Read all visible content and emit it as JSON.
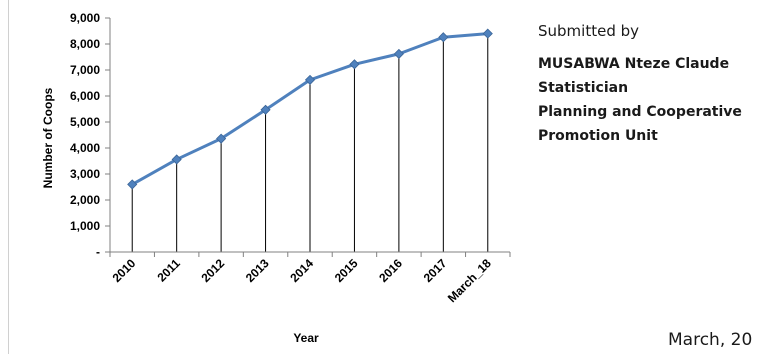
{
  "chart_data": {
    "type": "line",
    "categories": [
      "2010",
      "2011",
      "2012",
      "2013",
      "2014",
      "2015",
      "2016",
      "2017",
      "March_18"
    ],
    "values": [
      2600,
      3560,
      4360,
      5470,
      6620,
      7220,
      7620,
      8260,
      8400
    ],
    "xlabel": "Year",
    "ylabel": "Number of Coops",
    "ylim": [
      0,
      9000
    ],
    "yticks": [
      "-",
      "1,000",
      "2,000",
      "3,000",
      "4,000",
      "5,000",
      "6,000",
      "7,000",
      "8,000",
      "9,000"
    ],
    "drop_lines": true,
    "grid": false,
    "legend": "none",
    "colors": {
      "line": "#4f81bd",
      "marker": "#4f81bd",
      "drop_line": "#000000",
      "axis": "#808080"
    }
  },
  "side_panel": {
    "label": "Submitted by",
    "lines": [
      "MUSABWA Nteze Claude",
      "Statistician",
      "Planning and Cooperative",
      "Promotion Unit"
    ]
  },
  "footer": {
    "date": "March, 20"
  }
}
